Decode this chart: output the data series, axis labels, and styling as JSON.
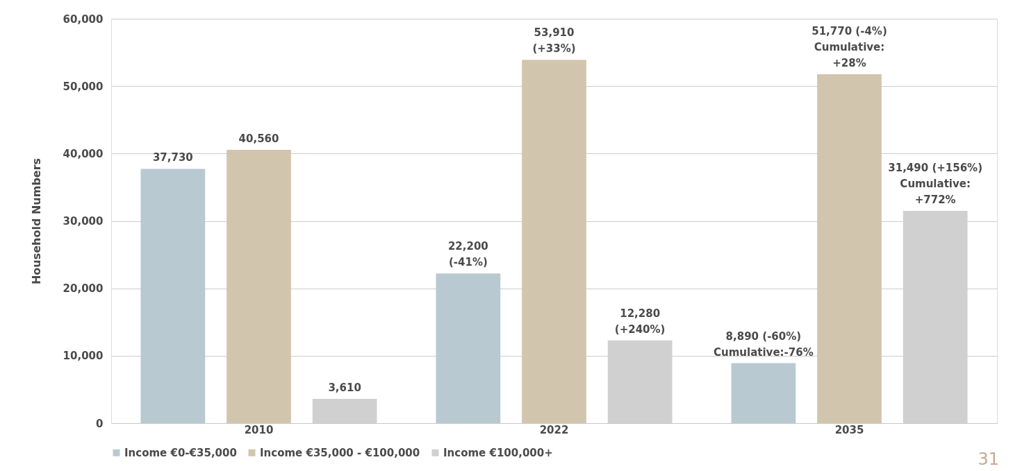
{
  "chart_data": {
    "type": "bar",
    "ylabel": "Household Numbers",
    "categories": [
      "2010",
      "2022",
      "2035"
    ],
    "series": [
      {
        "name": "Income €0-€35,000",
        "color": "#b8c9d1",
        "values": [
          37730,
          22200,
          8890
        ],
        "value_labels": [
          "37,730",
          "22,200\n(-41%)",
          "8,890 (-60%)\nCumulative:-76%"
        ]
      },
      {
        "name": "Income €35,000 - €100,000",
        "color": "#d2c5ae",
        "values": [
          40560,
          53910,
          51770
        ],
        "value_labels": [
          "40,560",
          "53,910\n(+33%)",
          "51,770 (-4%)\nCumulative:\n+28%"
        ]
      },
      {
        "name": "Income €100,000+",
        "color": "#d0d0d0",
        "values": [
          3610,
          12280,
          31490
        ],
        "value_labels": [
          "3,610",
          "12,280\n(+240%)",
          "31,490 (+156%)\nCumulative:\n+772%"
        ]
      }
    ],
    "ylim": [
      0,
      60000
    ],
    "yticks": [
      {
        "value": 0,
        "label": "0"
      },
      {
        "value": 10000,
        "label": "10,000"
      },
      {
        "value": 20000,
        "label": "20,000"
      },
      {
        "value": 30000,
        "label": "30,000"
      },
      {
        "value": 40000,
        "label": "40,000"
      },
      {
        "value": 50000,
        "label": "50,000"
      },
      {
        "value": 60000,
        "label": "60,000"
      }
    ],
    "grid": "y",
    "legend": "bottom",
    "annotations": [
      "31"
    ]
  }
}
